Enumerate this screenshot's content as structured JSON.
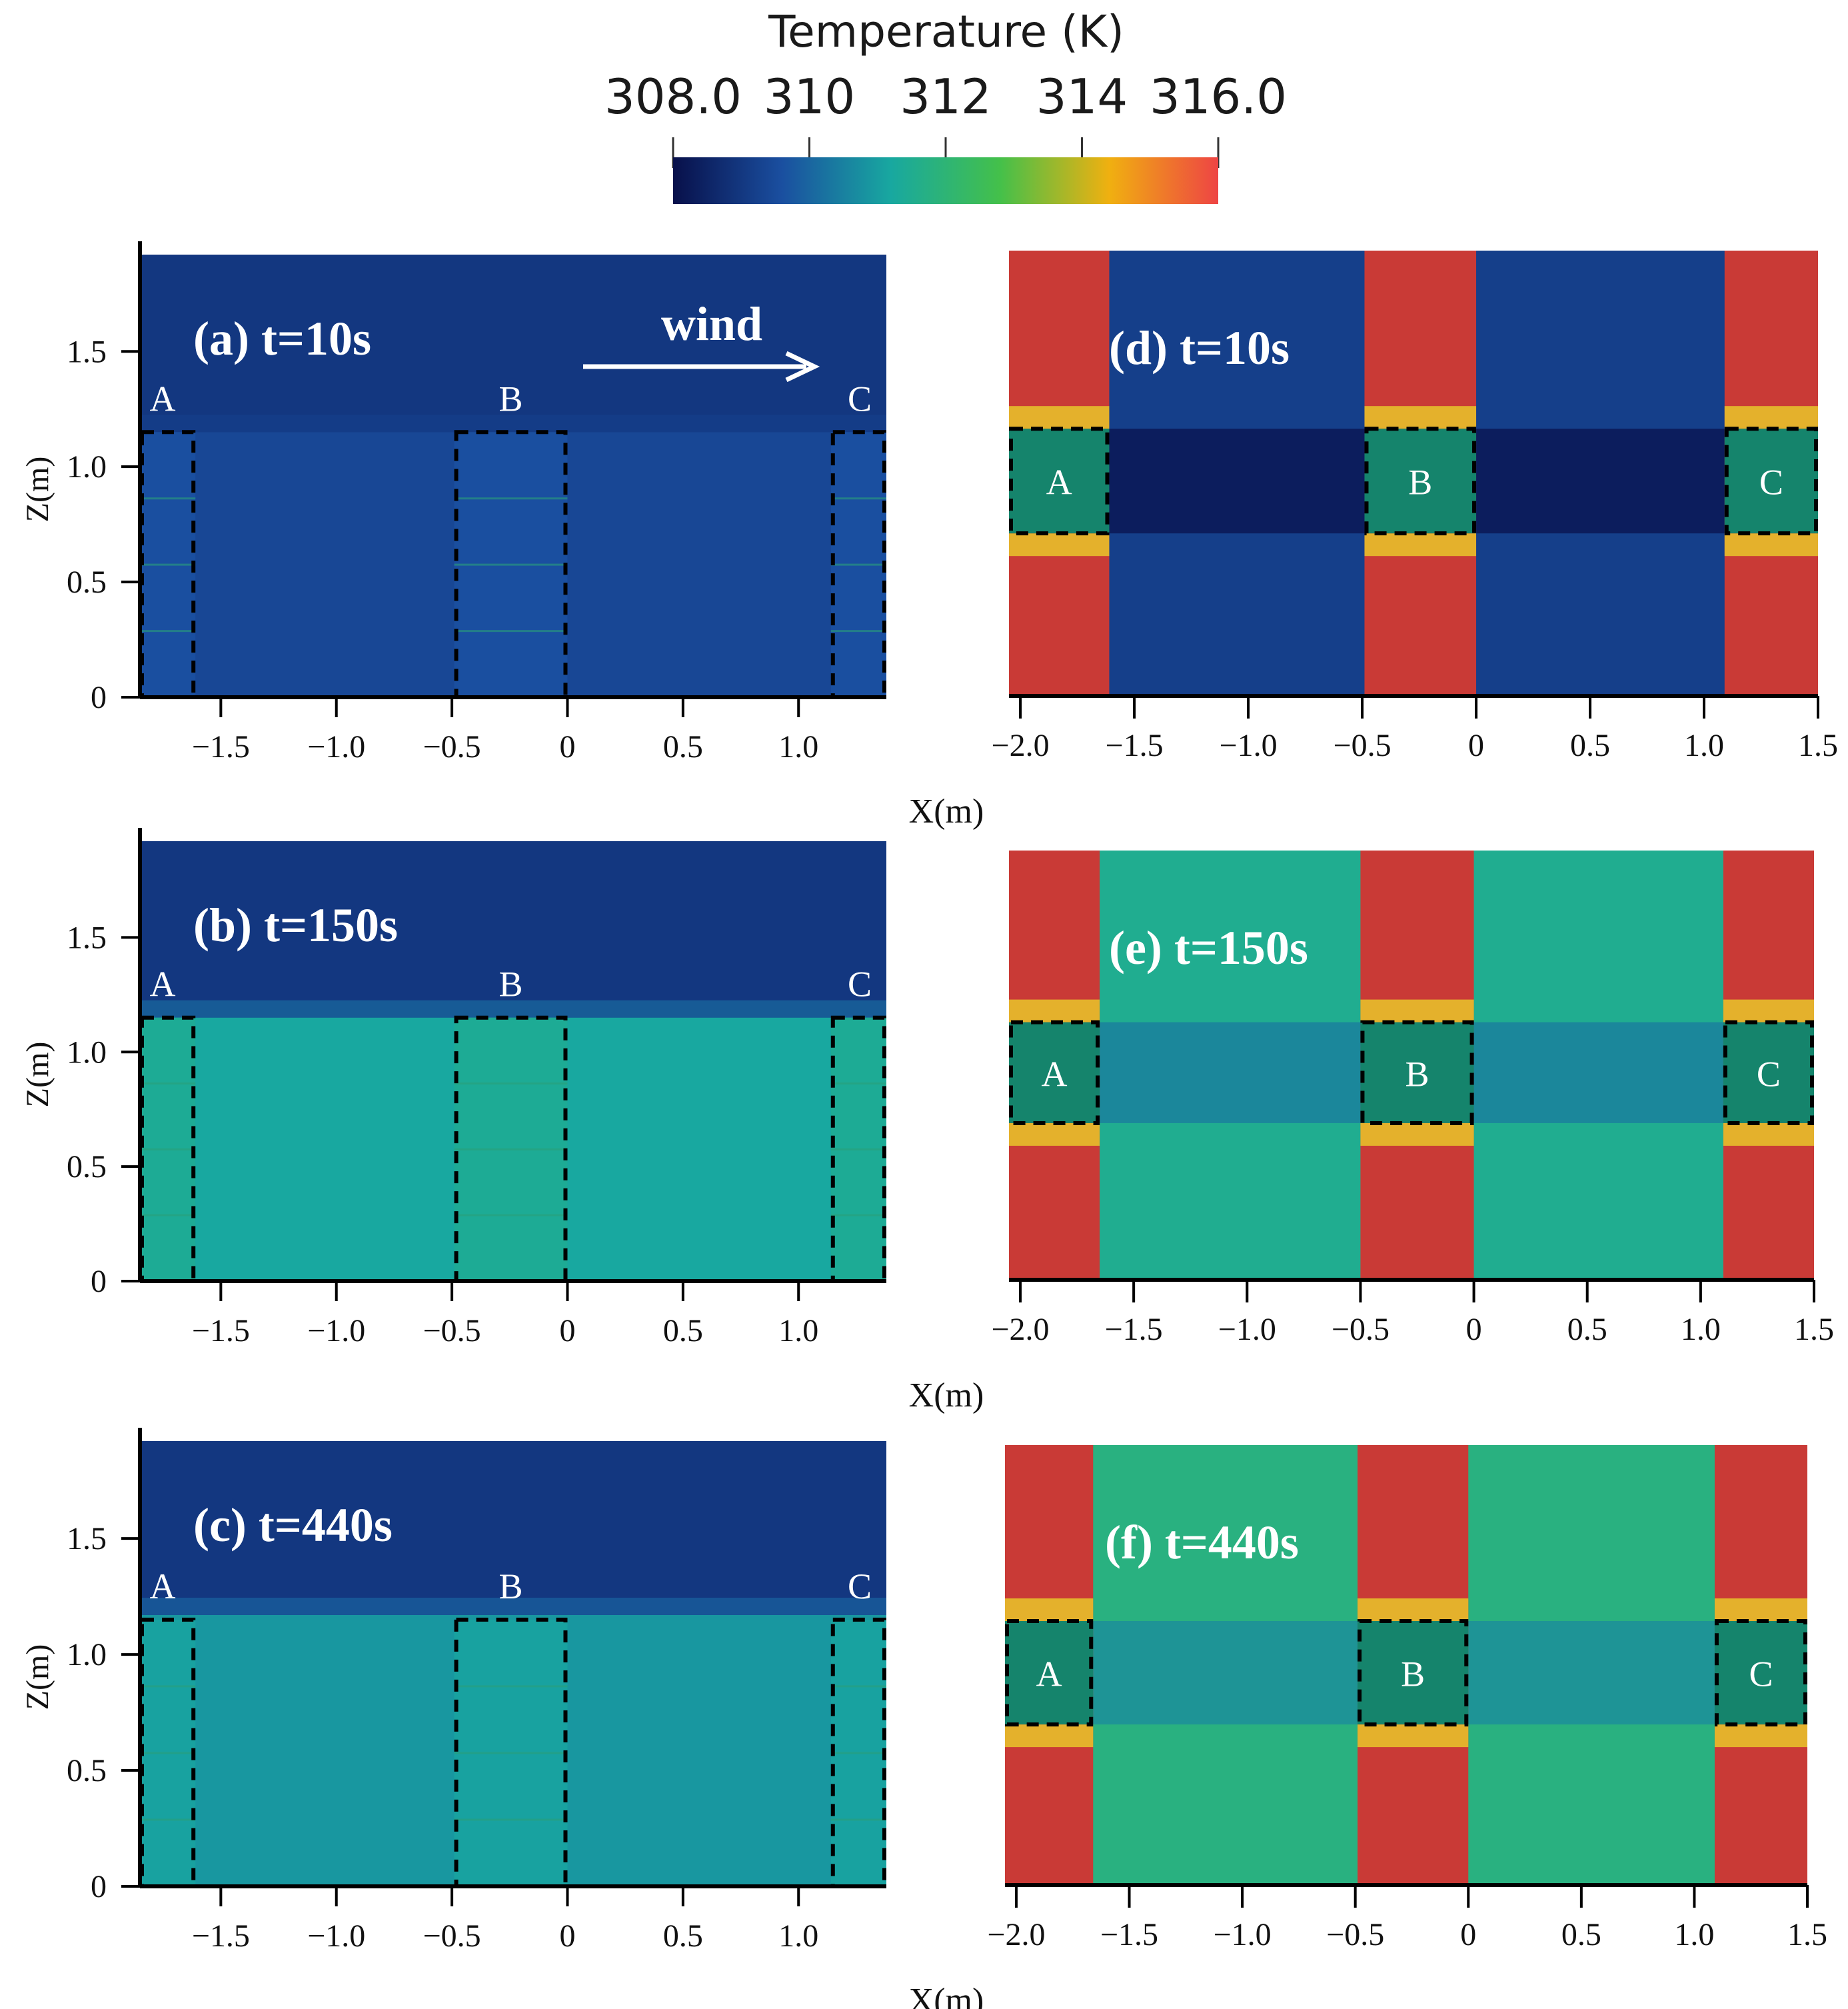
{
  "colorbar": {
    "title": "Temperature (K)",
    "tick_labels": [
      "308.0",
      "310",
      "312",
      "314",
      "316.0"
    ],
    "tick_values": [
      308,
      310,
      312,
      314,
      316
    ],
    "range": [
      308,
      316
    ],
    "stops": [
      "#08104a",
      "#1a4fa0",
      "#18a8a0",
      "#44c04a",
      "#f0b010",
      "#ee4444"
    ]
  },
  "colors": {
    "ambient": "#0e4a86",
    "plume_a": "#0f5a86",
    "plume_bc": "#168a6c",
    "building_wall": "#c93a36",
    "building_window": "#15846c",
    "edge_yellow": "#e9c72a",
    "dashed": "#000000"
  },
  "wind_label": "wind",
  "x_axis_label": "X(m)",
  "y_axis_label": "Z(m)",
  "chart_data": [
    {
      "type": "heatmap",
      "view": "side",
      "title": "(a) t=10s",
      "time_s": 10,
      "xlabel": "",
      "ylabel": "Z(m)",
      "xlim": [
        -1.85,
        1.38
      ],
      "ylim": [
        0,
        1.92
      ],
      "x_ticks": [
        -1.5,
        -1.0,
        -0.5,
        0,
        0.5,
        1.0
      ],
      "x_tick_labels": [
        "−1.5",
        "−1.0",
        "−0.5",
        "0",
        "0.5",
        "1.0"
      ],
      "y_ticks": [
        0,
        0.5,
        1.0,
        1.5
      ],
      "y_tick_labels": [
        "0",
        "0.5",
        "1.0",
        "1.5"
      ],
      "buildings": [
        {
          "label": "A",
          "x0": -1.85,
          "x1": -1.61,
          "top": 1.15
        },
        {
          "label": "B",
          "x0": -0.49,
          "x1": 0.0,
          "top": 1.15
        },
        {
          "label": "C",
          "x0": 1.14,
          "x1": 1.38,
          "top": 1.15
        }
      ],
      "ambient_temp_K": 309.0,
      "canyon_temp_K": 309.4,
      "plume_top": 1.15,
      "show_wind": true
    },
    {
      "type": "heatmap",
      "view": "side",
      "title": "(b) t=150s",
      "time_s": 150,
      "xlabel": "",
      "ylabel": "Z(m)",
      "xlim": [
        -1.85,
        1.38
      ],
      "ylim": [
        0,
        1.92
      ],
      "x_ticks": [
        -1.5,
        -1.0,
        -0.5,
        0,
        0.5,
        1.0
      ],
      "x_tick_labels": [
        "−1.5",
        "−1.0",
        "−0.5",
        "0",
        "0.5",
        "1.0"
      ],
      "y_ticks": [
        0,
        0.5,
        1.0,
        1.5
      ],
      "y_tick_labels": [
        "0",
        "0.5",
        "1.0",
        "1.5"
      ],
      "buildings": [
        {
          "label": "A",
          "x0": -1.85,
          "x1": -1.61,
          "top": 1.15
        },
        {
          "label": "B",
          "x0": -0.49,
          "x1": 0.0,
          "top": 1.15
        },
        {
          "label": "C",
          "x0": 1.14,
          "x1": 1.38,
          "top": 1.15
        }
      ],
      "ambient_temp_K": 309.0,
      "canyon_temp_K": 311.2,
      "plume_top": 1.15,
      "show_wind": false
    },
    {
      "type": "heatmap",
      "view": "side",
      "title": "(c) t=440s",
      "time_s": 440,
      "xlabel": "X(m)",
      "ylabel": "Z(m)",
      "xlim": [
        -1.85,
        1.38
      ],
      "ylim": [
        0,
        1.92
      ],
      "x_ticks": [
        -1.5,
        -1.0,
        -0.5,
        0,
        0.5,
        1.0
      ],
      "x_tick_labels": [
        "−1.5",
        "−1.0",
        "−0.5",
        "0",
        "0.5",
        "1.0"
      ],
      "y_ticks": [
        0,
        0.5,
        1.0,
        1.5
      ],
      "y_tick_labels": [
        "0",
        "0.5",
        "1.0",
        "1.5"
      ],
      "buildings": [
        {
          "label": "A",
          "x0": -1.85,
          "x1": -1.61,
          "top": 1.15
        },
        {
          "label": "B",
          "x0": -0.49,
          "x1": 0.0,
          "top": 1.15
        },
        {
          "label": "C",
          "x0": 1.14,
          "x1": 1.38,
          "top": 1.15
        }
      ],
      "ambient_temp_K": 309.0,
      "canyon_temp_K": 310.9,
      "plume_top": 1.17,
      "show_wind": false
    },
    {
      "type": "heatmap",
      "view": "plan",
      "title": "(d) t=10s",
      "time_s": 10,
      "xlabel": "X(m)",
      "xlim": [
        -2.05,
        1.5
      ],
      "x_ticks": [
        -2.0,
        -1.5,
        -1.0,
        -0.5,
        0,
        0.5,
        1.0,
        1.5
      ],
      "x_tick_labels": [
        "−2.0",
        "−1.5",
        "−1.0",
        "−0.5",
        "0",
        "0.5",
        "1.0",
        "1.5"
      ],
      "walls": [
        [
          -2.05,
          -1.61
        ],
        [
          -0.49,
          0.0
        ],
        [
          1.09,
          1.5
        ]
      ],
      "windows": [
        {
          "label": "A",
          "x0": -2.05,
          "x1": -1.61
        },
        {
          "label": "B",
          "x0": -0.49,
          "x1": 0.0
        },
        {
          "label": "C",
          "x0": 1.09,
          "x1": 1.5
        }
      ],
      "gap_temp_K": 309.2
    },
    {
      "type": "heatmap",
      "view": "plan",
      "title": "(e) t=150s",
      "time_s": 150,
      "xlabel": "X(m)",
      "xlim": [
        -2.05,
        1.5
      ],
      "x_ticks": [
        -2.0,
        -1.5,
        -1.0,
        -0.5,
        0,
        0.5,
        1.0,
        1.5
      ],
      "x_tick_labels": [
        "−2.0",
        "−1.5",
        "−1.0",
        "−0.5",
        "0",
        "0.5",
        "1.0",
        "1.5"
      ],
      "walls": [
        [
          -2.05,
          -1.65
        ],
        [
          -0.5,
          0.0
        ],
        [
          1.1,
          1.5
        ]
      ],
      "windows": [
        {
          "label": "A",
          "x0": -2.05,
          "x1": -1.65
        },
        {
          "label": "B",
          "x0": -0.5,
          "x1": 0.0
        },
        {
          "label": "C",
          "x0": 1.1,
          "x1": 1.5
        }
      ],
      "gap_temp_K": 311.5
    },
    {
      "type": "heatmap",
      "view": "plan",
      "title": "(f) t=440s",
      "time_s": 440,
      "xlabel": "X(m)",
      "xlim": [
        -2.05,
        1.5
      ],
      "x_ticks": [
        -2.0,
        -1.5,
        -1.0,
        -0.5,
        0,
        0.5,
        1.0,
        1.5
      ],
      "x_tick_labels": [
        "−2.0",
        "−1.5",
        "−1.0",
        "−0.5",
        "0",
        "0.5",
        "1.0",
        "1.5"
      ],
      "walls": [
        [
          -2.05,
          -1.66
        ],
        [
          -0.49,
          0.0
        ],
        [
          1.09,
          1.5
        ]
      ],
      "windows": [
        {
          "label": "A",
          "x0": -2.05,
          "x1": -1.66
        },
        {
          "label": "B",
          "x0": -0.49,
          "x1": 0.0
        },
        {
          "label": "C",
          "x0": 1.09,
          "x1": 1.5
        }
      ],
      "gap_temp_K": 311.8
    }
  ]
}
